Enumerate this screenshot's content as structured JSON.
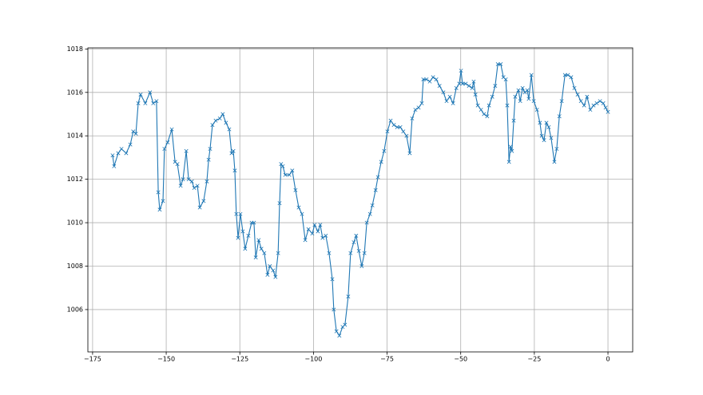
{
  "chart_data": {
    "type": "line",
    "color": "#1f77b4",
    "marker": "x",
    "grid": true,
    "xlim": [
      -176.6,
      8.4
    ],
    "ylim": [
      1004.05,
      1018.05
    ],
    "xticks": [
      {
        "value": -175,
        "label": "−175"
      },
      {
        "value": -150,
        "label": "−150"
      },
      {
        "value": -125,
        "label": "−125"
      },
      {
        "value": -100,
        "label": "−100"
      },
      {
        "value": -75,
        "label": "−75"
      },
      {
        "value": -50,
        "label": "−50"
      },
      {
        "value": -25,
        "label": "−25"
      },
      0
    ],
    "yticks": [
      1006,
      1008,
      1010,
      1012,
      1014,
      1016,
      1018
    ],
    "x": [
      -168.2,
      -167.7,
      -166.3,
      -165.2,
      -163.6,
      -162.2,
      -161.2,
      -160.3,
      -159.5,
      -158.7,
      -157.1,
      -155.5,
      -154.4,
      -153.3,
      -152.7,
      -152.2,
      -151.1,
      -150.6,
      -149.5,
      -148.1,
      -147.0,
      -146.2,
      -145.1,
      -144.3,
      -143.2,
      -142.4,
      -141.3,
      -140.5,
      -139.4,
      -138.6,
      -137.3,
      -136.2,
      -135.6,
      -135.1,
      -134.3,
      -133.2,
      -131.8,
      -130.8,
      -129.7,
      -128.6,
      -127.8,
      -127.2,
      -126.7,
      -126.2,
      -125.6,
      -124.8,
      -124.0,
      -123.2,
      -122.1,
      -121.0,
      -120.2,
      -119.6,
      -118.6,
      -117.7,
      -116.7,
      -115.6,
      -114.8,
      -113.7,
      -112.9,
      -112.0,
      -111.5,
      -111.0,
      -110.4,
      -109.6,
      -108.2,
      -107.2,
      -106.1,
      -105.0,
      -103.9,
      -102.8,
      -101.7,
      -100.4,
      -99.6,
      -98.5,
      -97.7,
      -96.9,
      -95.8,
      -94.7,
      -93.6,
      -93.1,
      -92.2,
      -91.2,
      -90.1,
      -89.3,
      -88.2,
      -87.4,
      -86.3,
      -85.5,
      -84.6,
      -83.6,
      -82.7,
      -81.9,
      -80.8,
      -80.0,
      -78.9,
      -78.1,
      -77.0,
      -76.0,
      -74.9,
      -73.8,
      -72.7,
      -71.6,
      -70.5,
      -69.5,
      -68.4,
      -67.3,
      -66.5,
      -65.4,
      -64.3,
      -63.2,
      -62.7,
      -61.6,
      -60.5,
      -59.4,
      -58.3,
      -57.2,
      -55.9,
      -54.8,
      -53.7,
      -52.6,
      -51.5,
      -50.5,
      -49.9,
      -49.4,
      -48.3,
      -47.2,
      -46.1,
      -45.6,
      -45.0,
      -44.2,
      -43.1,
      -42.1,
      -41.0,
      -40.4,
      -39.3,
      -38.3,
      -37.4,
      -36.4,
      -35.5,
      -34.7,
      -34.2,
      -33.6,
      -33.1,
      -32.6,
      -32.0,
      -31.5,
      -30.4,
      -29.8,
      -29.0,
      -28.2,
      -27.4,
      -26.9,
      -26.0,
      -25.2,
      -24.1,
      -23.1,
      -22.5,
      -21.7,
      -20.9,
      -20.1,
      -19.3,
      -18.2,
      -17.4,
      -16.5,
      -15.7,
      -14.6,
      -13.6,
      -12.5,
      -11.4,
      -10.3,
      -9.2,
      -8.1,
      -7.1,
      -6.0,
      -4.9,
      -3.8,
      -2.7,
      -1.6,
      -0.8,
      0
    ],
    "values": [
      1013.1,
      1012.6,
      1013.2,
      1013.4,
      1013.2,
      1013.6,
      1014.2,
      1014.1,
      1015.5,
      1015.9,
      1015.5,
      1016.0,
      1015.5,
      1015.6,
      1011.4,
      1010.6,
      1011.0,
      1013.4,
      1013.7,
      1014.3,
      1012.8,
      1012.7,
      1011.7,
      1012.0,
      1013.3,
      1012.0,
      1011.9,
      1011.6,
      1011.7,
      1010.7,
      1011.0,
      1011.9,
      1012.9,
      1013.4,
      1014.5,
      1014.7,
      1014.8,
      1015.0,
      1014.6,
      1014.3,
      1013.2,
      1013.3,
      1012.4,
      1010.4,
      1009.3,
      1010.4,
      1009.6,
      1008.8,
      1009.4,
      1010.0,
      1010.0,
      1008.4,
      1009.2,
      1008.8,
      1008.6,
      1007.6,
      1008.0,
      1007.8,
      1007.5,
      1008.6,
      1010.9,
      1012.7,
      1012.6,
      1012.2,
      1012.2,
      1012.4,
      1011.5,
      1010.7,
      1010.4,
      1009.2,
      1009.7,
      1009.5,
      1009.9,
      1009.6,
      1009.9,
      1009.3,
      1009.4,
      1008.6,
      1007.4,
      1006.0,
      1005.0,
      1004.8,
      1005.2,
      1005.3,
      1006.6,
      1008.6,
      1009.1,
      1009.4,
      1008.7,
      1008.0,
      1008.6,
      1010.0,
      1010.4,
      1010.8,
      1011.5,
      1012.1,
      1012.8,
      1013.3,
      1014.2,
      1014.7,
      1014.5,
      1014.4,
      1014.4,
      1014.2,
      1014.0,
      1013.2,
      1014.8,
      1015.2,
      1015.3,
      1015.5,
      1016.6,
      1016.6,
      1016.5,
      1016.7,
      1016.6,
      1016.3,
      1016.0,
      1015.6,
      1015.8,
      1015.5,
      1016.2,
      1016.4,
      1017.0,
      1016.4,
      1016.4,
      1016.3,
      1016.2,
      1016.5,
      1015.9,
      1015.4,
      1015.2,
      1015.0,
      1014.9,
      1015.4,
      1015.8,
      1016.3,
      1017.3,
      1017.3,
      1016.7,
      1016.6,
      1015.4,
      1012.8,
      1013.5,
      1013.3,
      1014.7,
      1015.8,
      1016.1,
      1015.6,
      1016.2,
      1016.0,
      1016.1,
      1015.7,
      1016.8,
      1015.6,
      1015.2,
      1014.6,
      1014.0,
      1013.8,
      1014.6,
      1014.4,
      1013.9,
      1012.8,
      1013.4,
      1014.9,
      1015.6,
      1016.8,
      1016.8,
      1016.7,
      1016.2,
      1015.9,
      1015.6,
      1015.4,
      1015.8,
      1015.2,
      1015.4,
      1015.5,
      1015.6,
      1015.5,
      1015.3,
      1015.1
    ]
  }
}
